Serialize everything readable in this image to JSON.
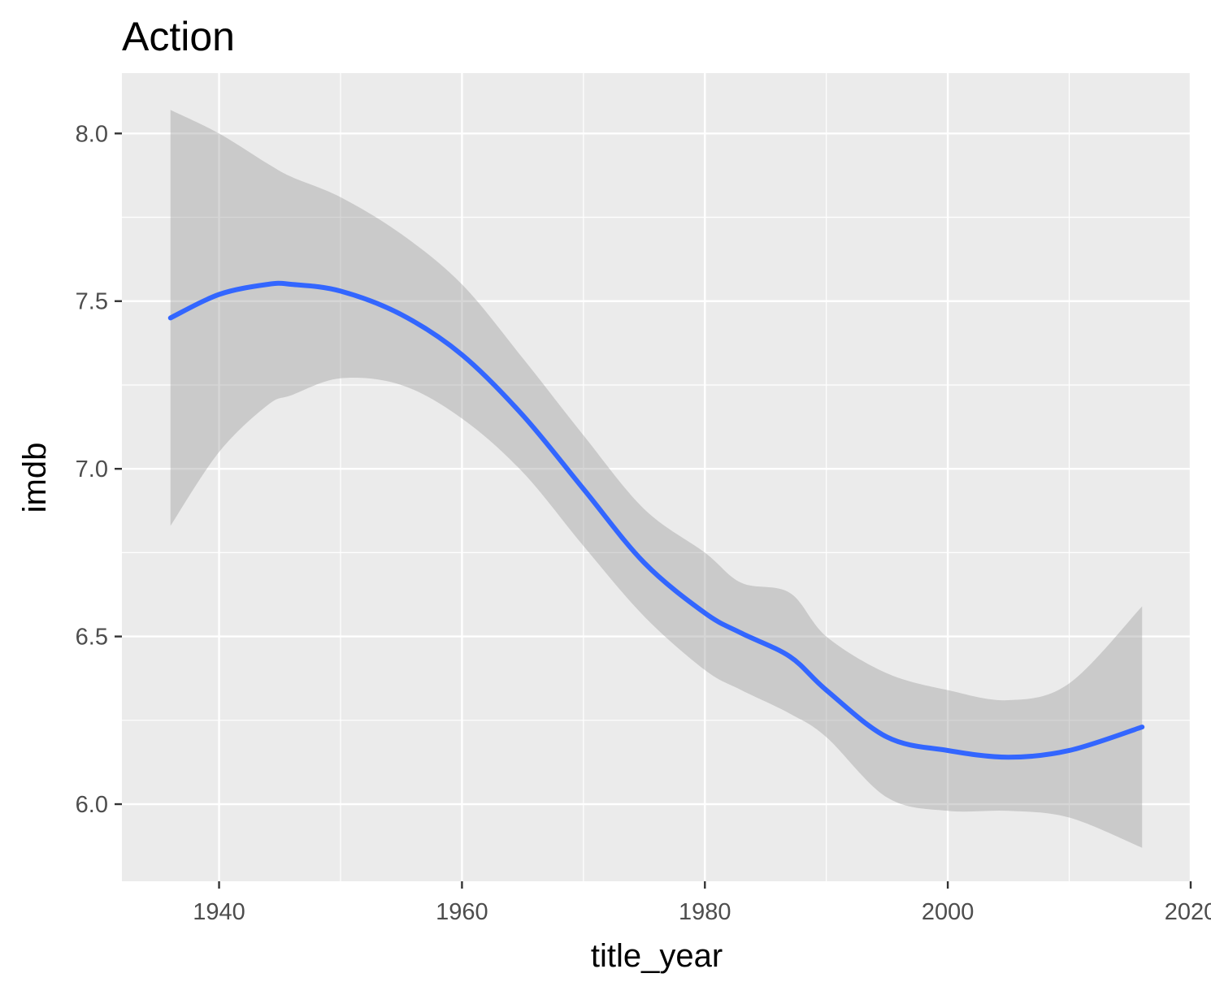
{
  "chart_data": {
    "type": "line",
    "title": "Action",
    "xlabel": "title_year",
    "ylabel": "imdb",
    "xlim": [
      1932,
      2020
    ],
    "ylim": [
      5.77,
      8.18
    ],
    "x_ticks": [
      1940,
      1960,
      1980,
      2000,
      2020
    ],
    "x_tick_labels": [
      "1940",
      "1960",
      "1980",
      "2000",
      "2020"
    ],
    "y_ticks": [
      6.0,
      6.5,
      7.0,
      7.5,
      8.0
    ],
    "y_tick_labels": [
      "6.0",
      "6.5",
      "7.0",
      "7.5",
      "8.0"
    ],
    "grid": true,
    "legend": "none",
    "colors": {
      "panel": "#ebebeb",
      "grid": "#ffffff",
      "line": "#3366ff",
      "ribbon": "#999999"
    },
    "series": [
      {
        "x": [
          1936,
          1940,
          1944,
          1946,
          1950,
          1955,
          1960,
          1965,
          1970,
          1975,
          1980,
          1983,
          1987,
          1990,
          1995,
          2000,
          2005,
          2010,
          2016
        ],
        "y": [
          7.45,
          7.52,
          7.55,
          7.55,
          7.53,
          7.46,
          7.34,
          7.16,
          6.94,
          6.72,
          6.57,
          6.51,
          6.44,
          6.34,
          6.2,
          6.16,
          6.14,
          6.16,
          6.23
        ],
        "lower": [
          6.83,
          7.05,
          7.19,
          7.22,
          7.27,
          7.25,
          7.15,
          6.99,
          6.77,
          6.56,
          6.4,
          6.34,
          6.27,
          6.2,
          6.02,
          5.98,
          5.98,
          5.96,
          5.87
        ],
        "upper": [
          8.07,
          8.0,
          7.91,
          7.87,
          7.81,
          7.7,
          7.55,
          7.33,
          7.1,
          6.88,
          6.75,
          6.66,
          6.63,
          6.5,
          6.39,
          6.34,
          6.31,
          6.36,
          6.59
        ]
      }
    ]
  }
}
